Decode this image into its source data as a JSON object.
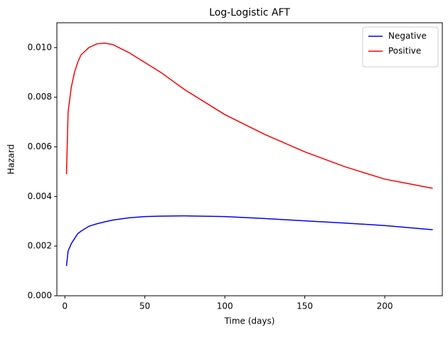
{
  "chart_data": {
    "type": "line",
    "title": "Log-Logistic AFT",
    "x_label": "Time (days)",
    "y_label": "Hazard",
    "x": [
      1,
      2,
      4,
      6,
      8,
      10,
      15,
      20,
      25,
      30,
      40,
      50,
      60,
      75,
      100,
      125,
      150,
      175,
      200,
      230
    ],
    "series": [
      {
        "name": "Negative",
        "color": "#0000ff",
        "values": [
          0.0012,
          0.0018,
          0.0021,
          0.0023,
          0.0025,
          0.0026,
          0.0028,
          0.0029,
          0.00298,
          0.00305,
          0.00314,
          0.00319,
          0.00321,
          0.00322,
          0.00319,
          0.00311,
          0.00302,
          0.00293,
          0.00283,
          0.00266
        ]
      },
      {
        "name": "Positive",
        "color": "#ff0000",
        "values": [
          0.0049,
          0.0074,
          0.0084,
          0.009,
          0.0094,
          0.0097,
          0.01,
          0.01015,
          0.01018,
          0.01012,
          0.0098,
          0.0094,
          0.009,
          0.0083,
          0.0073,
          0.0065,
          0.0058,
          0.0052,
          0.0047,
          0.00433
        ]
      }
    ],
    "xlim": [
      -5,
      236
    ],
    "xticks": [
      0,
      50,
      100,
      150,
      200
    ],
    "ylim": [
      0,
      0.011
    ],
    "yticks": [
      {
        "value": 0,
        "label": "0.000"
      },
      {
        "value": 0.002,
        "label": "0.002"
      },
      {
        "value": 0.004,
        "label": "0.004"
      },
      {
        "value": 0.006,
        "label": "0.006"
      },
      {
        "value": 0.008,
        "label": "0.008"
      },
      {
        "value": 0.01,
        "label": "0.010"
      }
    ],
    "legend": "upper right"
  }
}
